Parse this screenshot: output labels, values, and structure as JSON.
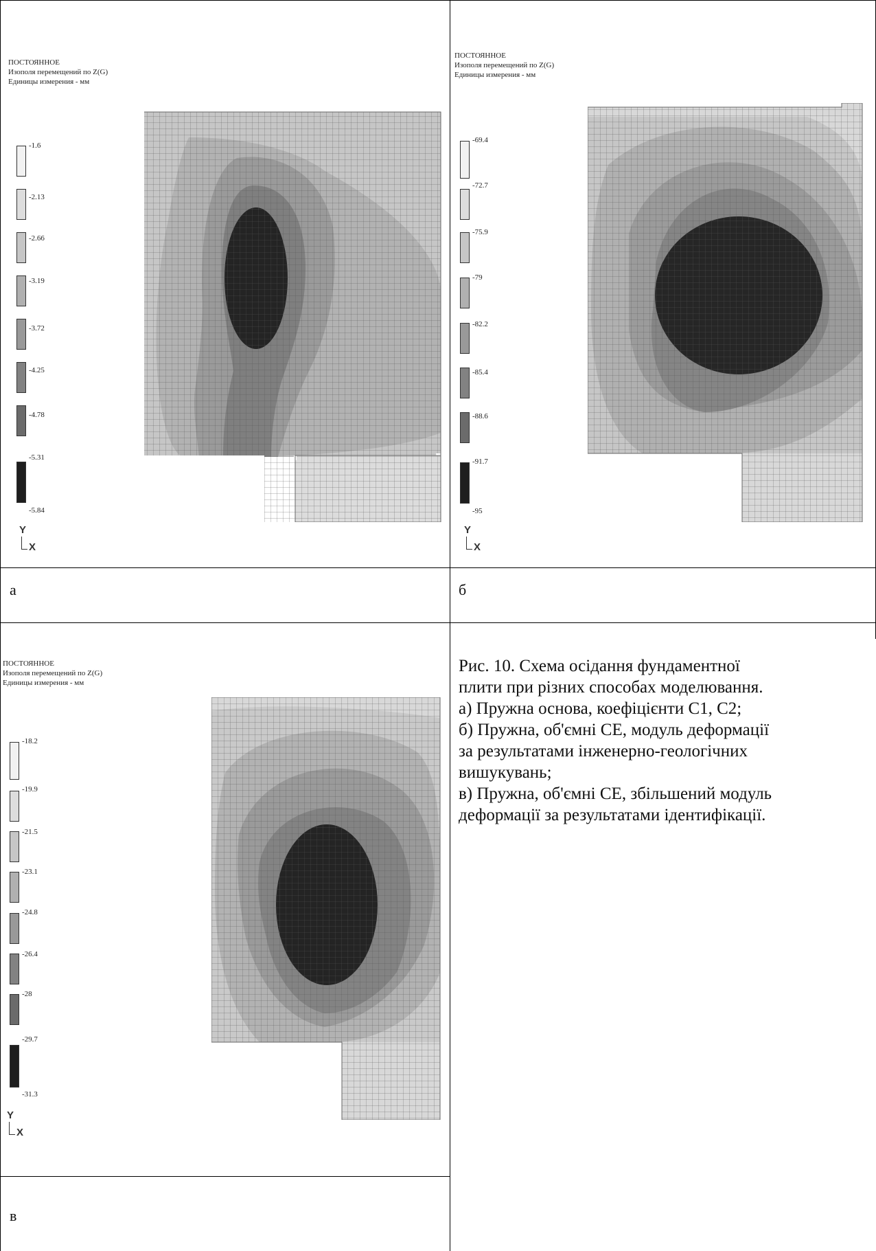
{
  "panels": [
    {
      "header": [
        "ПОСТОЯННОЕ",
        "Изополя перемещений по Z(G)",
        "Единицы измерения - мм"
      ],
      "legend": [
        "-1.6",
        "-2.13",
        "-2.66",
        "-3.19",
        "-3.72",
        "-4.25",
        "-4.78",
        "-5.31",
        "-5.84"
      ],
      "axis_y": "Y",
      "axis_x": "X",
      "letter": "а"
    },
    {
      "header": [
        "ПОСТОЯННОЕ",
        "Изополя перемещений по Z(G)",
        "Единицы измерения - мм"
      ],
      "legend": [
        "-69.4",
        "-72.7",
        "-75.9",
        "-79",
        "-82.2",
        "-85.4",
        "-88.6",
        "-91.7",
        "-95"
      ],
      "axis_y": "Y",
      "axis_x": "X",
      "letter": "б"
    },
    {
      "header": [
        "ПОСТОЯННОЕ",
        "Изополя перемещений по Z(G)",
        "Единицы измерения - мм"
      ],
      "legend": [
        "-18.2",
        "-19.9",
        "-21.5",
        "-23.1",
        "-24.8",
        "-26.4",
        "-28",
        "-29.7",
        "-31.3"
      ],
      "axis_y": "Y",
      "axis_x": "X",
      "letter": "в"
    }
  ],
  "legend_colors": [
    "#f2f2f2",
    "#dddddd",
    "#c6c6c6",
    "#b0b0b0",
    "#999999",
    "#828282",
    "#6b6b6b",
    "#4a4a4a",
    "#1e1e1e"
  ],
  "caption": [
    "Рис. 10. Схема осідання фундаментної",
    "плити при різних способах моделювання.",
    "а) Пружна основа, коефіцієнти С1, С2;",
    "б) Пружна, об'ємні СЕ, модуль деформації",
    "за результатами інженерно-геологічних",
    "вишукувань;",
    "в) Пружна, об'ємні СЕ, збільшений модуль",
    "деформації за результатами ідентифікації."
  ]
}
